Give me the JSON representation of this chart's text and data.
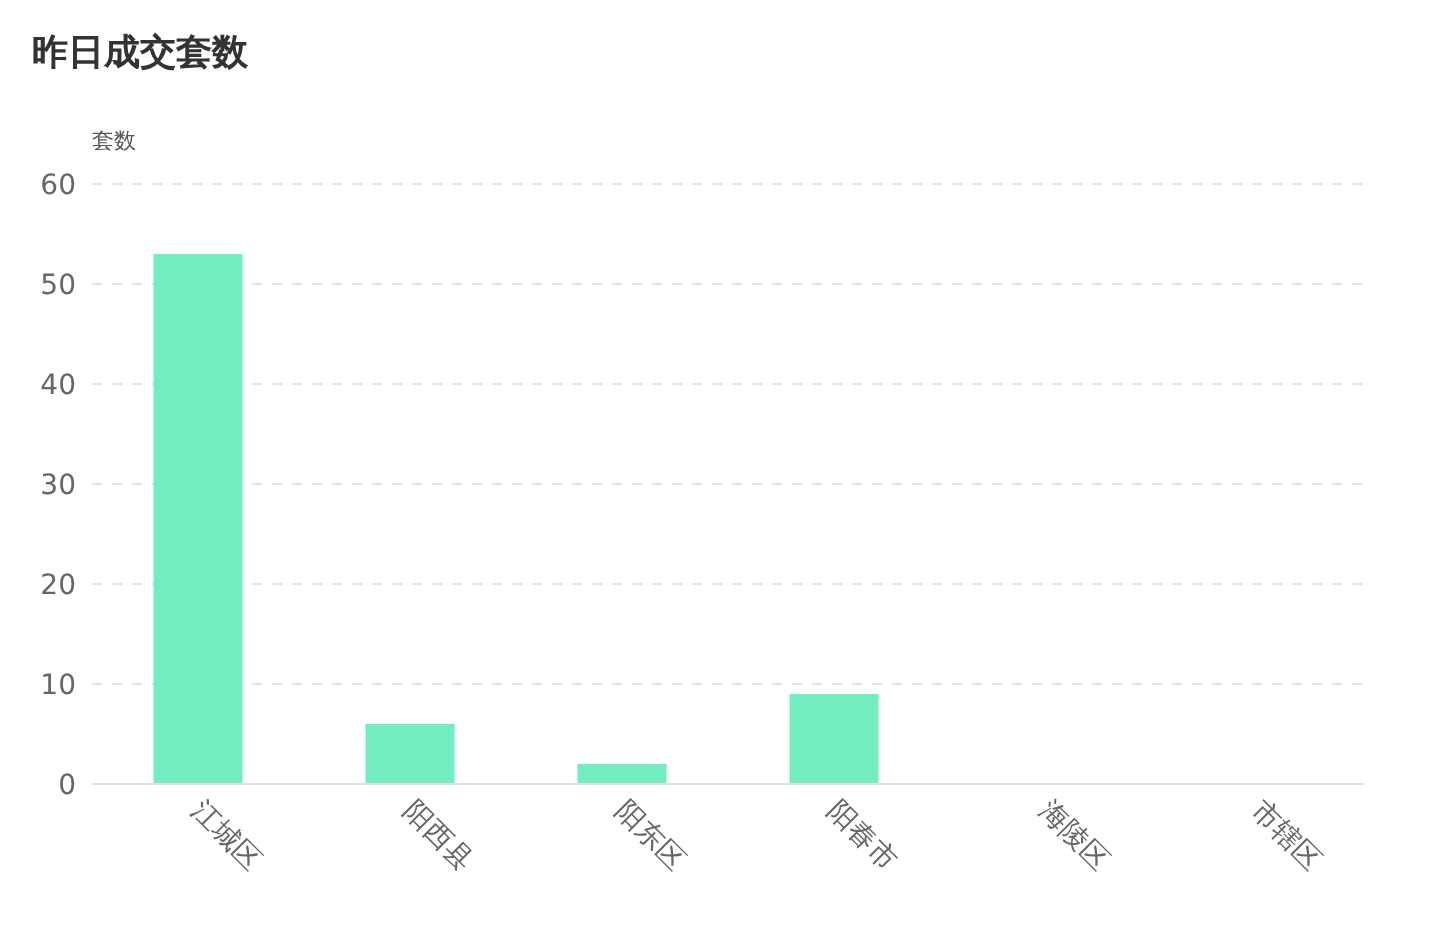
{
  "chart_data": {
    "type": "bar",
    "title": "昨日成交套数",
    "ylabel": "套数",
    "categories": [
      "江城区",
      "阳西县",
      "阳东区",
      "阳春市",
      "海陵区",
      "市辖区"
    ],
    "values": [
      53,
      6,
      2,
      9,
      0,
      0
    ],
    "color": "#72edbf",
    "ylim": [
      0,
      60
    ],
    "yticks": [
      0,
      10,
      20,
      30,
      40,
      50,
      60
    ],
    "grid": "y"
  }
}
